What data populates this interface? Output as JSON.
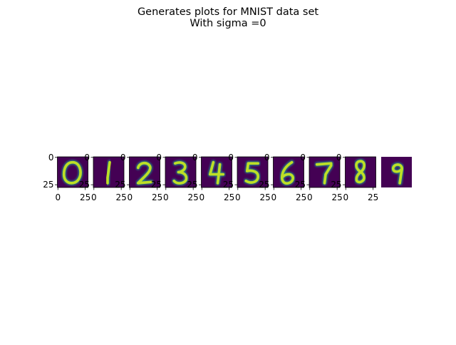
{
  "figure": {
    "title_lines": [
      "Generates plots for MNIST data set",
      "With sigma =0"
    ]
  },
  "chart_data": {
    "type": "image-grid",
    "title": "Generates plots for MNIST data set\nWith sigma =0",
    "panels": [
      {
        "digit": "0",
        "xticks": [
          "0",
          "25"
        ],
        "yticks": [
          "0",
          "25"
        ]
      },
      {
        "digit": "1",
        "xticks": [
          "0",
          "25"
        ],
        "yticks": [
          "0",
          "25"
        ]
      },
      {
        "digit": "2",
        "xticks": [
          "0",
          "25"
        ],
        "yticks": [
          "0",
          "25"
        ]
      },
      {
        "digit": "3",
        "xticks": [
          "0",
          "25"
        ],
        "yticks": [
          "0",
          "25"
        ]
      },
      {
        "digit": "4",
        "xticks": [
          "0",
          "25"
        ],
        "yticks": [
          "0",
          "25"
        ]
      },
      {
        "digit": "5",
        "xticks": [
          "0",
          "25"
        ],
        "yticks": [
          "0",
          "25"
        ]
      },
      {
        "digit": "6",
        "xticks": [
          "0",
          "25"
        ],
        "yticks": [
          "0",
          "25"
        ]
      },
      {
        "digit": "7",
        "xticks": [
          "0",
          "25"
        ],
        "yticks": [
          "0",
          "25"
        ]
      },
      {
        "digit": "8",
        "xticks": [
          "0",
          "25"
        ],
        "yticks": [
          "0",
          "25"
        ]
      },
      {
        "digit": "9",
        "xticks": [],
        "yticks": []
      }
    ],
    "image_size": [
      28,
      28
    ],
    "colormap": "viridis",
    "colors": {
      "background": "#440154",
      "mid": "#21918c",
      "bright": "#bddf26"
    }
  }
}
